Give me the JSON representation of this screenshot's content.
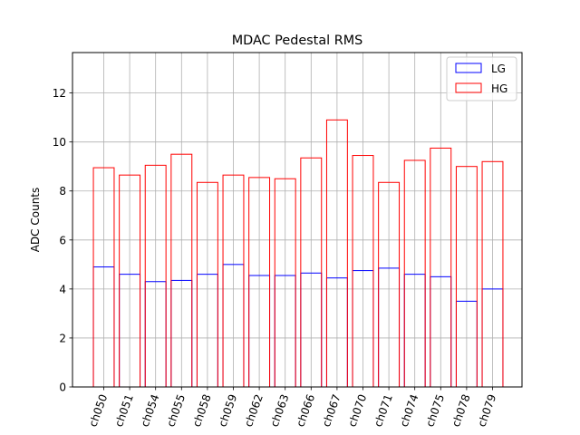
{
  "chart_data": {
    "type": "bar",
    "title": "MDAC Pedestal RMS",
    "xlabel": "",
    "ylabel": "ADC Counts",
    "ylim": [
      0,
      13.65
    ],
    "yticks": [
      0,
      2,
      4,
      6,
      8,
      10,
      12
    ],
    "grid": true,
    "legend_position": "top-right",
    "categories": [
      "ch050",
      "ch051",
      "ch054",
      "ch055",
      "ch058",
      "ch059",
      "ch062",
      "ch063",
      "ch066",
      "ch067",
      "ch070",
      "ch071",
      "ch074",
      "ch075",
      "ch078",
      "ch079"
    ],
    "series": [
      {
        "name": "LG",
        "color": "#0000ff",
        "values": [
          4.9,
          4.6,
          4.3,
          4.35,
          4.6,
          5.0,
          4.55,
          4.55,
          4.65,
          4.45,
          4.75,
          4.85,
          4.6,
          4.5,
          3.5,
          4.0
        ]
      },
      {
        "name": "HG",
        "color": "#ff0000",
        "values": [
          8.95,
          8.65,
          9.05,
          9.5,
          8.35,
          8.65,
          8.55,
          8.5,
          9.35,
          10.9,
          9.45,
          8.35,
          9.25,
          9.75,
          9.0,
          9.2
        ]
      }
    ]
  }
}
